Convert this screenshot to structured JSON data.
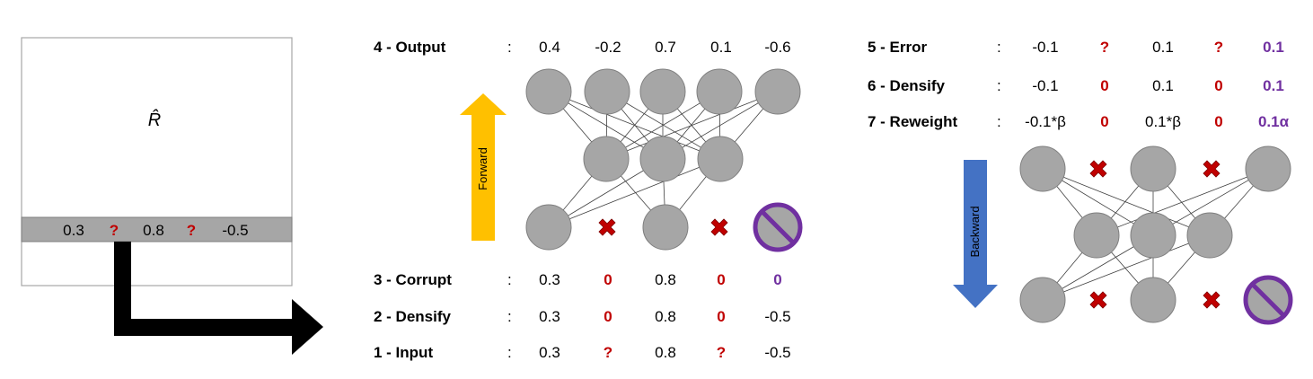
{
  "matrix": {
    "symbol": "R̂",
    "row_values": [
      {
        "text": "0.3",
        "style": "normal"
      },
      {
        "text": "?",
        "style": "red"
      },
      {
        "text": "0.8",
        "style": "normal"
      },
      {
        "text": "?",
        "style": "red"
      },
      {
        "text": "-0.5",
        "style": "normal"
      }
    ]
  },
  "left_rows": [
    {
      "label": "4 - Output",
      "colon": ":",
      "values": [
        {
          "text": "0.4",
          "style": "normal"
        },
        {
          "text": "-0.2",
          "style": "normal"
        },
        {
          "text": "0.7",
          "style": "normal"
        },
        {
          "text": "0.1",
          "style": "normal"
        },
        {
          "text": "-0.6",
          "style": "normal"
        }
      ]
    },
    {
      "label": "3 - Corrupt",
      "colon": ":",
      "values": [
        {
          "text": "0.3",
          "style": "normal"
        },
        {
          "text": "0",
          "style": "red"
        },
        {
          "text": "0.8",
          "style": "normal"
        },
        {
          "text": "0",
          "style": "red"
        },
        {
          "text": "0",
          "style": "purple"
        }
      ]
    },
    {
      "label": "2 - Densify",
      "colon": ":",
      "values": [
        {
          "text": "0.3",
          "style": "normal"
        },
        {
          "text": "0",
          "style": "red"
        },
        {
          "text": "0.8",
          "style": "normal"
        },
        {
          "text": "0",
          "style": "red"
        },
        {
          "text": "-0.5",
          "style": "normal"
        }
      ]
    },
    {
      "label": "1 - Input",
      "colon": ":",
      "values": [
        {
          "text": "0.3",
          "style": "normal"
        },
        {
          "text": "?",
          "style": "red"
        },
        {
          "text": "0.8",
          "style": "normal"
        },
        {
          "text": "?",
          "style": "red"
        },
        {
          "text": "-0.5",
          "style": "normal"
        }
      ]
    }
  ],
  "right_rows": [
    {
      "label": "5 - Error",
      "colon": ":",
      "values": [
        {
          "text": "-0.1",
          "style": "normal"
        },
        {
          "text": "?",
          "style": "red"
        },
        {
          "text": "0.1",
          "style": "normal"
        },
        {
          "text": "?",
          "style": "red"
        },
        {
          "text": "0.1",
          "style": "purple"
        }
      ]
    },
    {
      "label": "6 - Densify",
      "colon": ":",
      "values": [
        {
          "text": "-0.1",
          "style": "normal"
        },
        {
          "text": "0",
          "style": "red"
        },
        {
          "text": "0.1",
          "style": "normal"
        },
        {
          "text": "0",
          "style": "red"
        },
        {
          "text": "0.1",
          "style": "purple"
        }
      ]
    },
    {
      "label": "7 - Reweight",
      "colon": ":",
      "values": [
        {
          "text": "-0.1*β",
          "style": "normal"
        },
        {
          "text": "0",
          "style": "red"
        },
        {
          "text": "0.1*β",
          "style": "normal"
        },
        {
          "text": "0",
          "style": "red"
        },
        {
          "text": "0.1α",
          "style": "purple"
        }
      ]
    }
  ],
  "arrows": {
    "forward_label": "Forward",
    "backward_label": "Backward"
  },
  "colors": {
    "forward_arrow": "#ffc000",
    "backward_arrow": "#4472c4",
    "missing_mark": "#c00000",
    "blocked_node": "#7030a0",
    "node": "#a6a6a6"
  },
  "icons": {
    "missing": "x-mark-icon",
    "blocked": "no-entry-icon"
  }
}
